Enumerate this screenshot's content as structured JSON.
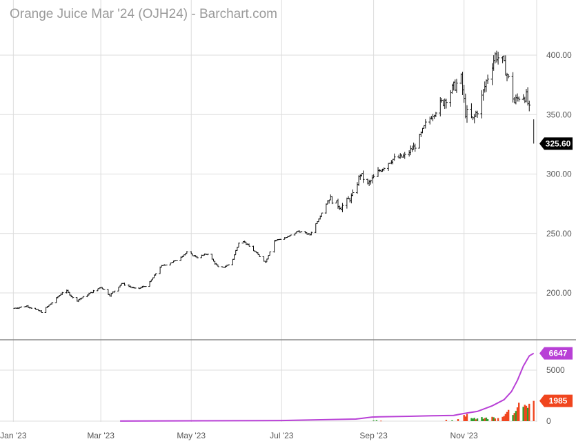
{
  "title": "Orange Juice Mar '24 (OJH24) - Barchart.com",
  "colors": {
    "price_bar": "#111111",
    "grid": "#dcdcdc",
    "divider": "#8a8a8a",
    "last_price_bg": "#000000",
    "volume_up": "#2ca02c",
    "volume_down": "#f0451e",
    "open_interest": "#b840d6",
    "axis_text": "#555555"
  },
  "chart_data": [
    {
      "type": "ohlc",
      "name": "price",
      "x_type": "date",
      "xlim": [
        "2023-01-01",
        "2023-12-20"
      ],
      "ylim": [
        160,
        430
      ],
      "y_ticks": [
        200,
        250,
        300,
        350,
        400
      ],
      "y_tick_labels": [
        "200.00",
        "250.00",
        "300.00",
        "350.00",
        "400.00"
      ],
      "x_ticks": [
        "2023-01-01",
        "2023-03-01",
        "2023-05-01",
        "2023-07-01",
        "2023-09-01",
        "2023-11-01"
      ],
      "x_tick_labels": [
        "Jan '23",
        "Mar '23",
        "May '23",
        "Jul '23",
        "Sep '23",
        "Nov '23"
      ],
      "last_price": 325.6,
      "last_price_label": "325.60",
      "grid": true,
      "anchors": [
        [
          "2023-01-01",
          187
        ],
        [
          "2023-01-10",
          189
        ],
        [
          "2023-01-20",
          184
        ],
        [
          "2023-01-28",
          193
        ],
        [
          "2023-02-05",
          203
        ],
        [
          "2023-02-12",
          193
        ],
        [
          "2023-02-22",
          200
        ],
        [
          "2023-03-01",
          205
        ],
        [
          "2023-03-07",
          198
        ],
        [
          "2023-03-15",
          208
        ],
        [
          "2023-03-25",
          203
        ],
        [
          "2023-04-02",
          207
        ],
        [
          "2023-04-10",
          222
        ],
        [
          "2023-04-20",
          227
        ],
        [
          "2023-04-28",
          234
        ],
        [
          "2023-05-05",
          230
        ],
        [
          "2023-05-12",
          233
        ],
        [
          "2023-05-20",
          220
        ],
        [
          "2023-05-28",
          225
        ],
        [
          "2023-06-03",
          246
        ],
        [
          "2023-06-10",
          238
        ],
        [
          "2023-06-20",
          226
        ],
        [
          "2023-06-26",
          244
        ],
        [
          "2023-07-05",
          247
        ],
        [
          "2023-07-12",
          252
        ],
        [
          "2023-07-20",
          249
        ],
        [
          "2023-07-27",
          265
        ],
        [
          "2023-08-02",
          280
        ],
        [
          "2023-08-10",
          272
        ],
        [
          "2023-08-18",
          282
        ],
        [
          "2023-08-23",
          300
        ],
        [
          "2023-08-28",
          291
        ],
        [
          "2023-09-05",
          303
        ],
        [
          "2023-09-13",
          312
        ],
        [
          "2023-09-22",
          315
        ],
        [
          "2023-09-30",
          325
        ],
        [
          "2023-10-06",
          342
        ],
        [
          "2023-10-16",
          358
        ],
        [
          "2023-10-25",
          373
        ],
        [
          "2023-10-30",
          380
        ],
        [
          "2023-11-02",
          352
        ],
        [
          "2023-11-07",
          345
        ],
        [
          "2023-11-12",
          360
        ],
        [
          "2023-11-16",
          378
        ],
        [
          "2023-11-22",
          400
        ],
        [
          "2023-11-27",
          395
        ],
        [
          "2023-12-01",
          380
        ],
        [
          "2023-12-05",
          360
        ],
        [
          "2023-12-09",
          367
        ],
        [
          "2023-12-13",
          365
        ],
        [
          "2023-12-16",
          348
        ],
        [
          "2023-12-18",
          325.6
        ]
      ]
    },
    {
      "type": "bar+line",
      "name": "volume and open interest",
      "x_type": "date",
      "xlim": [
        "2023-01-01",
        "2023-12-20"
      ],
      "ylim": [
        0,
        7000
      ],
      "y_ticks": [
        0,
        5000
      ],
      "y_tick_labels": [
        "0",
        "5000"
      ],
      "series": [
        {
          "type": "line",
          "last_value_label": "6647",
          "points": [
            [
              "2023-03-14",
              5
            ],
            [
              "2023-07-01",
              60
            ],
            [
              "2023-08-20",
              200
            ],
            [
              "2023-08-31",
              400
            ],
            [
              "2023-09-05",
              420
            ],
            [
              "2023-09-25",
              470
            ],
            [
              "2023-10-10",
              520
            ],
            [
              "2023-10-25",
              560
            ],
            [
              "2023-11-01",
              750
            ],
            [
              "2023-11-10",
              950
            ],
            [
              "2023-11-20",
              1500
            ],
            [
              "2023-11-28",
              2100
            ],
            [
              "2023-12-03",
              2900
            ],
            [
              "2023-12-07",
              4000
            ],
            [
              "2023-12-11",
              5400
            ],
            [
              "2023-12-15",
              6400
            ],
            [
              "2023-12-18",
              6647
            ]
          ]
        },
        {
          "type": "bar",
          "last_value_label": "1985",
          "bars": [
            [
              "2023-09-01",
              60,
              "up"
            ],
            [
              "2023-09-03",
              90,
              "up"
            ],
            [
              "2023-09-06",
              40,
              "down"
            ],
            [
              "2023-10-20",
              120,
              "down"
            ],
            [
              "2023-10-24",
              80,
              "up"
            ],
            [
              "2023-10-28",
              200,
              "down"
            ],
            [
              "2023-11-01",
              600,
              "down"
            ],
            [
              "2023-11-02",
              450,
              "down"
            ],
            [
              "2023-11-03",
              700,
              "down"
            ],
            [
              "2023-11-06",
              300,
              "up"
            ],
            [
              "2023-11-07",
              250,
              "up"
            ],
            [
              "2023-11-08",
              320,
              "up"
            ],
            [
              "2023-11-09",
              180,
              "down"
            ],
            [
              "2023-11-10",
              260,
              "up"
            ],
            [
              "2023-11-13",
              400,
              "up"
            ],
            [
              "2023-11-14",
              220,
              "up"
            ],
            [
              "2023-11-15",
              300,
              "down"
            ],
            [
              "2023-11-16",
              350,
              "up"
            ],
            [
              "2023-11-17",
              200,
              "up"
            ],
            [
              "2023-11-20",
              420,
              "down"
            ],
            [
              "2023-11-21",
              380,
              "up"
            ],
            [
              "2023-11-22",
              260,
              "down"
            ],
            [
              "2023-11-24",
              300,
              "down"
            ],
            [
              "2023-11-27",
              420,
              "down"
            ],
            [
              "2023-11-28",
              500,
              "down"
            ],
            [
              "2023-11-29",
              700,
              "down"
            ],
            [
              "2023-11-30",
              900,
              "down"
            ],
            [
              "2023-12-01",
              1100,
              "down"
            ],
            [
              "2023-12-04",
              600,
              "up"
            ],
            [
              "2023-12-05",
              800,
              "down"
            ],
            [
              "2023-12-06",
              1000,
              "up"
            ],
            [
              "2023-12-07",
              1350,
              "down"
            ],
            [
              "2023-12-08",
              1800,
              "down"
            ],
            [
              "2023-12-11",
              1400,
              "up"
            ],
            [
              "2023-12-12",
              1600,
              "down"
            ],
            [
              "2023-12-13",
              1500,
              "down"
            ],
            [
              "2023-12-14",
              1300,
              "up"
            ],
            [
              "2023-12-15",
              1700,
              "down"
            ],
            [
              "2023-12-18",
              1985,
              "down"
            ]
          ]
        }
      ]
    }
  ]
}
